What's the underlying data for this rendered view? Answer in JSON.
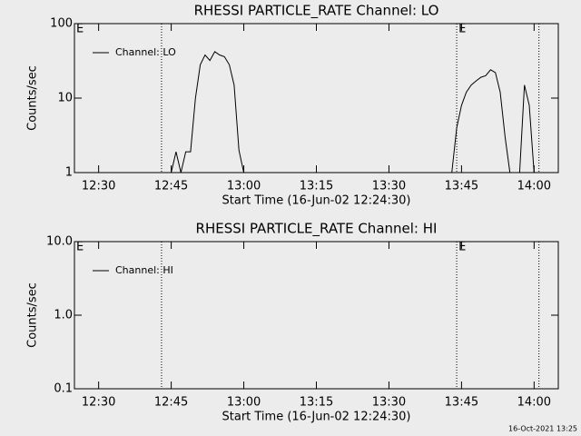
{
  "chart_data": [
    {
      "type": "line",
      "title": "RHESSI PARTICLE_RATE Channel: LO",
      "x_label": "Start Time (16-Jun-02 12:24:30)",
      "y_label": "Counts/sec",
      "x": [
        "12:44",
        "12:45",
        "12:46",
        "12:47",
        "12:48",
        "12:49",
        "12:50",
        "12:51",
        "12:52",
        "12:53",
        "12:54",
        "12:55",
        "12:56",
        "12:57",
        "12:58",
        "12:59",
        "13:00",
        "13:01",
        "13:43",
        "13:44",
        "13:45",
        "13:46",
        "13:47",
        "13:48",
        "13:49",
        "13:50",
        "13:51",
        "13:52",
        "13:53",
        "13:54",
        "13:55",
        "13:56",
        "13:57",
        "13:58",
        "13:59",
        "14:00"
      ],
      "series": [
        {
          "name": "Channel: LO",
          "color": "#000000",
          "values": [
            null,
            1,
            1.9,
            1,
            1.9,
            1.9,
            10,
            28,
            38,
            32,
            42,
            38,
            36,
            28,
            15,
            2,
            1,
            null,
            1,
            4,
            8,
            12,
            15,
            17,
            19,
            20,
            24,
            22,
            12,
            3,
            1,
            null,
            1,
            15,
            8,
            1
          ]
        }
      ],
      "xlim": [
        "12:25",
        "14:05"
      ],
      "xticks": [
        "12:30",
        "12:45",
        "13:00",
        "13:15",
        "13:30",
        "13:45",
        "14:00"
      ],
      "ylim": [
        1,
        100
      ],
      "yticks": [
        1,
        10,
        100
      ],
      "log_y": true,
      "legend": "upper left",
      "vlines": [
        "12:43",
        "13:44",
        "14:01"
      ],
      "annotations": [
        {
          "x": "12:25",
          "text": "E"
        },
        {
          "x": "13:44",
          "text": "E"
        }
      ]
    },
    {
      "type": "line",
      "title": "RHESSI PARTICLE_RATE Channel: HI",
      "x_label": "Start Time (16-Jun-02 12:24:30)",
      "y_label": "Counts/sec",
      "x": [],
      "series": [
        {
          "name": "Channel: HI",
          "color": "#000000",
          "values": []
        }
      ],
      "xlim": [
        "12:25",
        "14:05"
      ],
      "xticks": [
        "12:30",
        "12:45",
        "13:00",
        "13:15",
        "13:30",
        "13:45",
        "14:00"
      ],
      "ylim": [
        0.1,
        10
      ],
      "yticks": [
        0.1,
        {
          "value": 1,
          "label": "1.0"
        },
        {
          "value": 10,
          "label": "10.0"
        }
      ],
      "log_y": true,
      "legend": "upper left",
      "vlines": [
        "12:43",
        "13:44",
        "14:01"
      ],
      "annotations": [
        {
          "x": "12:25",
          "text": "E"
        },
        {
          "x": "13:44",
          "text": "E"
        }
      ]
    }
  ],
  "footer": "16-Oct-2021 13:25"
}
